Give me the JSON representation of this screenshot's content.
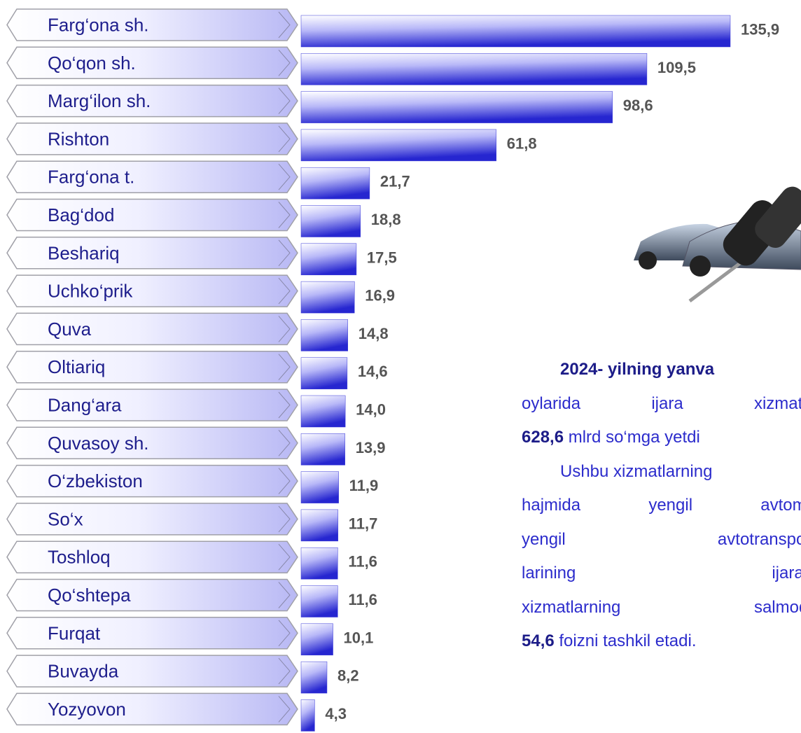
{
  "chart_data": {
    "type": "bar",
    "orientation": "horizontal",
    "categories": [
      "Farg‘ona sh.",
      "Qo‘qon sh.",
      "Marg‘ilon sh.",
      "Rishton",
      "Farg‘ona t.",
      "Bag‘dod",
      "Beshariq",
      "Uchko‘prik",
      "Quva",
      "Oltiariq",
      "Dang‘ara",
      "Quvasoy sh.",
      "O‘zbekiston",
      "So‘x",
      "Toshloq",
      "Qo‘shtepa",
      "Furqat",
      "Buvayda",
      "Yozyovon"
    ],
    "values": [
      135.9,
      109.5,
      98.6,
      61.8,
      21.7,
      18.8,
      17.5,
      16.9,
      14.8,
      14.6,
      14.0,
      13.9,
      11.9,
      11.7,
      11.6,
      11.6,
      10.1,
      8.2,
      4.3
    ],
    "value_labels": [
      "135,9",
      "109,5",
      "98,6",
      "61,8",
      "21,7",
      "18,8",
      "17,5",
      "16,9",
      "14,8",
      "14,6",
      "14,0",
      "13,9",
      "11,9",
      "11,7",
      "11,6",
      "11,6",
      "10,1",
      "8,2",
      "4,3"
    ],
    "color": "#3a3ad8"
  },
  "text": {
    "lines": [
      {
        "bold": "2024- yilning yanva"
      },
      {
        "text": "oylarida ijara xizmatla"
      },
      {
        "bold": "628,6",
        "text": " mlrd so‘mga yetdi"
      },
      {
        "text": "Ushbu xizmatlarning"
      },
      {
        "text": "hajmida yengil avtomo"
      },
      {
        "text": "yengil avtotransport"
      },
      {
        "text": "larining ijarasi"
      },
      {
        "text": "xizmatlarning salmoqli"
      },
      {
        "bold": "54,6",
        "text": " foizni tashkil etadi."
      }
    ]
  }
}
